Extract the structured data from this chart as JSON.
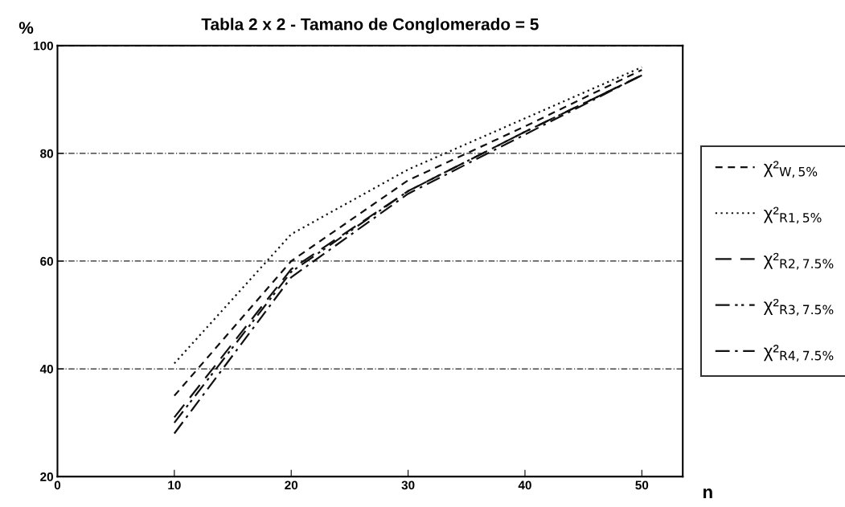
{
  "chart_data": {
    "type": "line",
    "title": "Tabla 2 x 2 - Tamano de Conglomerado = 5",
    "xlabel": "n",
    "ylabel": "%",
    "x": [
      10,
      20,
      30,
      40,
      50
    ],
    "series": [
      {
        "name": "χ²$_{W,5%}$",
        "color": "#111111",
        "line_style": "dashed",
        "values": [
          35,
          60,
          75,
          85,
          95.5
        ]
      },
      {
        "name": "χ²$_{R1,5%}$",
        "color": "#111111",
        "line_style": "dotted",
        "values": [
          41,
          65,
          77,
          86.5,
          96
        ]
      },
      {
        "name": "χ²$_{R2,7.5%}$",
        "color": "#111111",
        "line_style": "longdash",
        "values": [
          31,
          58.5,
          73,
          84,
          94.5
        ]
      },
      {
        "name": "χ²$_{R3,7.5%}$",
        "color": "#111111",
        "line_style": "dashdotdot",
        "values": [
          30,
          58,
          73,
          84,
          94.5
        ]
      },
      {
        "name": "χ²$_{R4,7.5%}$",
        "color": "#111111",
        "line_style": "dashdot",
        "values": [
          28,
          57,
          72.5,
          83.5,
          94.5
        ]
      }
    ],
    "xlim": [
      0,
      53.5
    ],
    "xticks": [
      0,
      10,
      20,
      30,
      40,
      50
    ],
    "ylim": [
      20,
      100
    ],
    "yticks": [
      20,
      40,
      60,
      80,
      100
    ],
    "grid": "y",
    "legend": "right",
    "marker": "none"
  }
}
